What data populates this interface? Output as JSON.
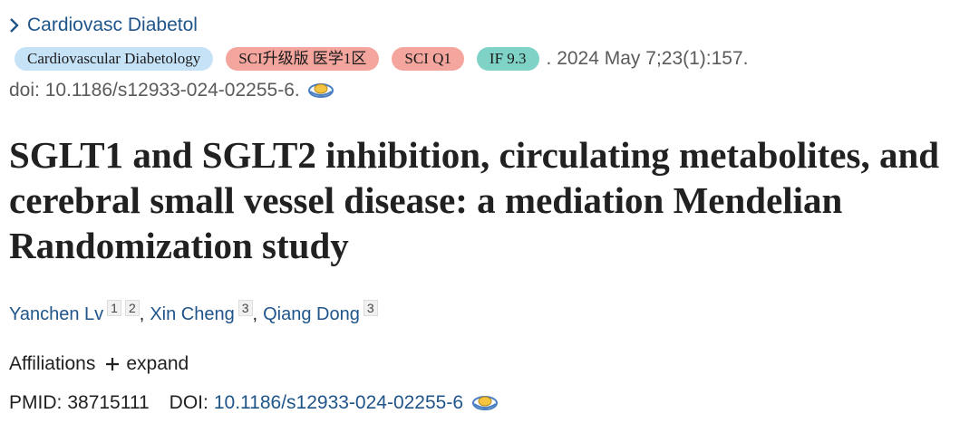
{
  "journal_link": "Cardiovasc Diabetol",
  "badges": [
    "Cardiovascular Diabetology",
    "SCI升级版 医学1区",
    "SCI Q1",
    "IF 9.3"
  ],
  "citation": ". 2024 May 7;23(1):157.",
  "doi_line": "doi: 10.1186/s12933-024-02255-6.",
  "title": "SGLT1 and SGLT2 inhibition, circulating metabolites, and cerebral small vessel disease: a mediation Mendelian Randomization study",
  "authors": [
    {
      "name": "Yanchen Lv",
      "refs": [
        "1",
        "2"
      ],
      "sep": ","
    },
    {
      "name": "Xin Cheng",
      "refs": [
        "3"
      ],
      "sep": ","
    },
    {
      "name": "Qiang Dong",
      "refs": [
        "3"
      ]
    }
  ],
  "affiliations": {
    "label": "Affiliations",
    "expand": "expand"
  },
  "ids": {
    "pmid_label": "PMID:",
    "pmid": "38715111",
    "doi_label": "DOI:",
    "doi": "10.1186/s12933-024-02255-6"
  }
}
